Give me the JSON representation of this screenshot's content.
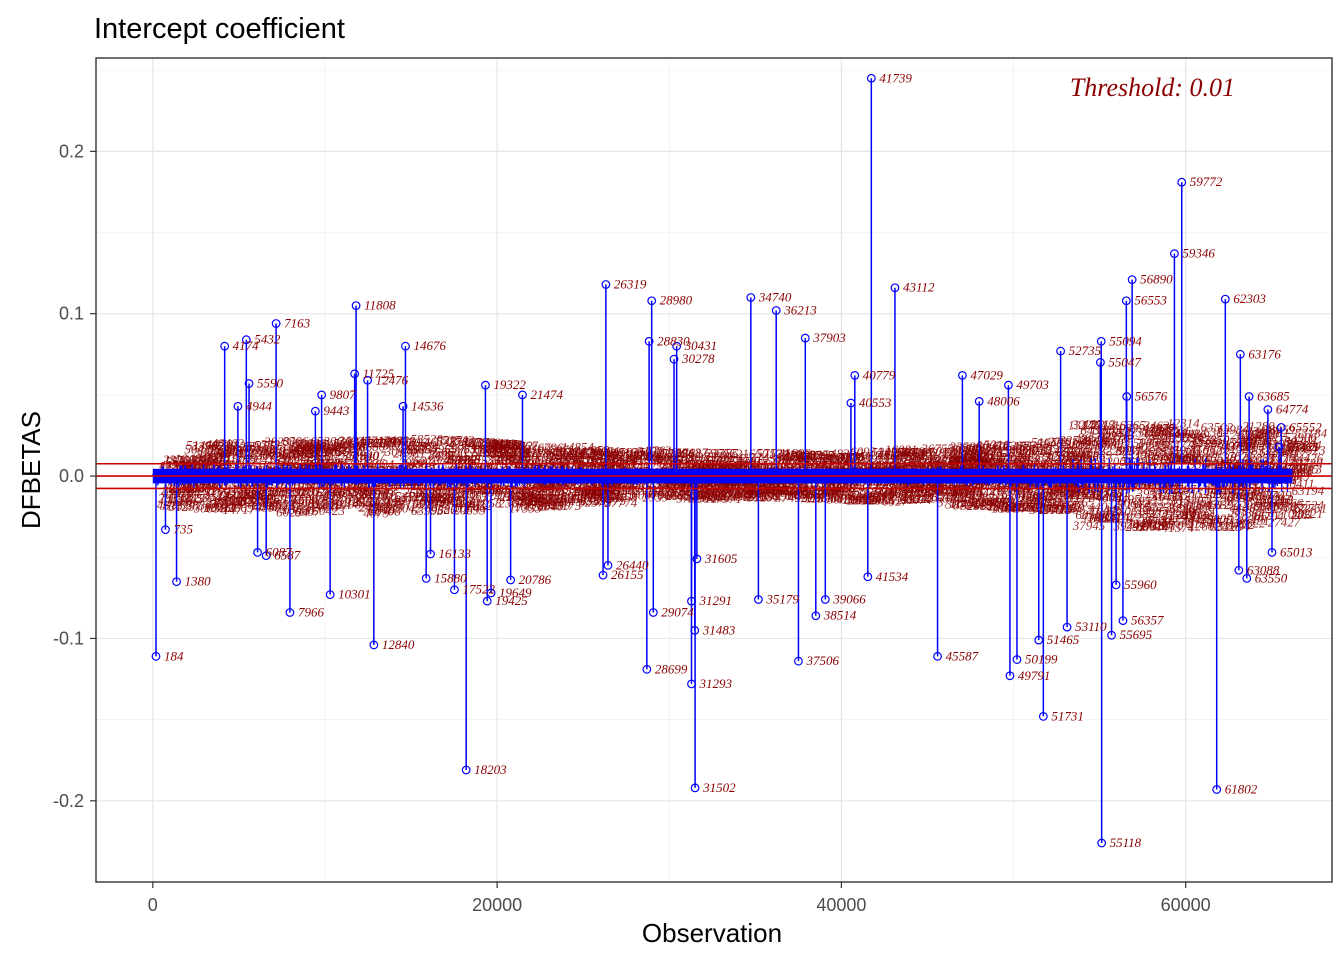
{
  "chart_data": {
    "type": "scatter",
    "title": "Intercept coefficient",
    "xlabel": "Observation",
    "ylabel": "DFBETAS",
    "xlim": [
      -3300,
      68500
    ],
    "ylim": [
      -0.25,
      0.2575
    ],
    "x_ticks": [
      0,
      20000,
      40000,
      60000
    ],
    "x_tick_labels": [
      "0",
      "20000",
      "40000",
      "60000"
    ],
    "y_ticks": [
      -0.2,
      -0.1,
      0.0,
      0.1,
      0.2
    ],
    "y_tick_labels": [
      "-0.2",
      "-0.1",
      "0.0",
      "0.1",
      "0.2"
    ],
    "threshold": 0.0076,
    "threshold_label": "Threshold: 0.01",
    "n_observations": 66200,
    "grid": true,
    "colors": {
      "stems": "#0000ff",
      "labels": "#8b0000",
      "threshold": "#cc0000",
      "points": "#0000ff"
    },
    "labeled_points": [
      {
        "x": 184,
        "y": -0.111,
        "label": "184"
      },
      {
        "x": 735,
        "y": -0.033,
        "label": "735"
      },
      {
        "x": 1380,
        "y": -0.065,
        "label": "1380"
      },
      {
        "x": 4174,
        "y": 0.08,
        "label": "4174"
      },
      {
        "x": 5432,
        "y": 0.084,
        "label": "5432"
      },
      {
        "x": 5590,
        "y": 0.057,
        "label": "5590"
      },
      {
        "x": 4944,
        "y": 0.043,
        "label": "4944"
      },
      {
        "x": 6087,
        "y": -0.047,
        "label": "6087"
      },
      {
        "x": 7163,
        "y": 0.094,
        "label": "7163"
      },
      {
        "x": 6587,
        "y": -0.049,
        "label": "6587"
      },
      {
        "x": 7966,
        "y": -0.084,
        "label": "7966"
      },
      {
        "x": 9443,
        "y": 0.04,
        "label": "9443"
      },
      {
        "x": 9807,
        "y": 0.05,
        "label": "9807"
      },
      {
        "x": 10301,
        "y": -0.073,
        "label": "10301"
      },
      {
        "x": 11808,
        "y": 0.105,
        "label": "11808"
      },
      {
        "x": 11725,
        "y": 0.063,
        "label": "11725"
      },
      {
        "x": 12476,
        "y": 0.059,
        "label": "12476"
      },
      {
        "x": 12840,
        "y": -0.104,
        "label": "12840"
      },
      {
        "x": 14676,
        "y": 0.08,
        "label": "14676"
      },
      {
        "x": 14536,
        "y": 0.043,
        "label": "14536"
      },
      {
        "x": 15880,
        "y": -0.063,
        "label": "15880"
      },
      {
        "x": 16133,
        "y": -0.048,
        "label": "16133"
      },
      {
        "x": 17522,
        "y": -0.07,
        "label": "17522"
      },
      {
        "x": 18203,
        "y": -0.181,
        "label": "18203"
      },
      {
        "x": 19322,
        "y": 0.056,
        "label": "19322"
      },
      {
        "x": 19425,
        "y": -0.077,
        "label": "19425"
      },
      {
        "x": 19649,
        "y": -0.072,
        "label": "19649"
      },
      {
        "x": 20786,
        "y": -0.064,
        "label": "20786"
      },
      {
        "x": 21474,
        "y": 0.05,
        "label": "21474"
      },
      {
        "x": 26319,
        "y": 0.118,
        "label": "26319"
      },
      {
        "x": 26440,
        "y": -0.055,
        "label": "26440"
      },
      {
        "x": 26155,
        "y": -0.061,
        "label": "26155"
      },
      {
        "x": 28980,
        "y": 0.108,
        "label": "28980"
      },
      {
        "x": 28830,
        "y": 0.083,
        "label": "28830"
      },
      {
        "x": 28699,
        "y": -0.119,
        "label": "28699"
      },
      {
        "x": 29074,
        "y": -0.084,
        "label": "29074"
      },
      {
        "x": 30431,
        "y": 0.08,
        "label": "30431"
      },
      {
        "x": 30278,
        "y": 0.072,
        "label": "30278"
      },
      {
        "x": 31291,
        "y": -0.077,
        "label": "31291"
      },
      {
        "x": 31483,
        "y": -0.095,
        "label": "31483"
      },
      {
        "x": 31293,
        "y": -0.128,
        "label": "31293"
      },
      {
        "x": 31502,
        "y": -0.192,
        "label": "31502"
      },
      {
        "x": 31605,
        "y": -0.051,
        "label": "31605"
      },
      {
        "x": 34740,
        "y": 0.11,
        "label": "34740"
      },
      {
        "x": 36213,
        "y": 0.102,
        "label": "36213"
      },
      {
        "x": 35179,
        "y": -0.076,
        "label": "35179"
      },
      {
        "x": 37903,
        "y": 0.085,
        "label": "37903"
      },
      {
        "x": 37506,
        "y": -0.114,
        "label": "37506"
      },
      {
        "x": 38514,
        "y": -0.086,
        "label": "38514"
      },
      {
        "x": 39066,
        "y": -0.076,
        "label": "39066"
      },
      {
        "x": 40779,
        "y": 0.062,
        "label": "40779"
      },
      {
        "x": 40553,
        "y": 0.045,
        "label": "40553"
      },
      {
        "x": 41739,
        "y": 0.245,
        "label": "41739"
      },
      {
        "x": 41534,
        "y": -0.062,
        "label": "41534"
      },
      {
        "x": 43112,
        "y": 0.116,
        "label": "43112"
      },
      {
        "x": 45587,
        "y": -0.111,
        "label": "45587"
      },
      {
        "x": 47029,
        "y": 0.062,
        "label": "47029"
      },
      {
        "x": 48006,
        "y": 0.046,
        "label": "48006"
      },
      {
        "x": 49703,
        "y": 0.056,
        "label": "49703"
      },
      {
        "x": 49791,
        "y": -0.123,
        "label": "49791"
      },
      {
        "x": 50199,
        "y": -0.113,
        "label": "50199"
      },
      {
        "x": 51465,
        "y": -0.101,
        "label": "51465"
      },
      {
        "x": 51731,
        "y": -0.148,
        "label": "51731"
      },
      {
        "x": 53110,
        "y": -0.093,
        "label": "53110"
      },
      {
        "x": 52735,
        "y": 0.077,
        "label": "52735"
      },
      {
        "x": 55094,
        "y": 0.083,
        "label": "55094"
      },
      {
        "x": 55047,
        "y": 0.07,
        "label": "55047"
      },
      {
        "x": 55118,
        "y": -0.226,
        "label": "55118"
      },
      {
        "x": 55695,
        "y": -0.098,
        "label": "55695"
      },
      {
        "x": 55960,
        "y": -0.067,
        "label": "55960"
      },
      {
        "x": 56357,
        "y": -0.089,
        "label": "56357"
      },
      {
        "x": 56553,
        "y": 0.108,
        "label": "56553"
      },
      {
        "x": 56890,
        "y": 0.121,
        "label": "56890"
      },
      {
        "x": 56576,
        "y": 0.049,
        "label": "56576"
      },
      {
        "x": 59346,
        "y": 0.137,
        "label": "59346"
      },
      {
        "x": 59772,
        "y": 0.181,
        "label": "59772"
      },
      {
        "x": 61802,
        "y": -0.193,
        "label": "61802"
      },
      {
        "x": 62303,
        "y": 0.109,
        "label": "62303"
      },
      {
        "x": 63176,
        "y": 0.075,
        "label": "63176"
      },
      {
        "x": 63685,
        "y": 0.049,
        "label": "63685"
      },
      {
        "x": 63088,
        "y": -0.058,
        "label": "63088"
      },
      {
        "x": 63550,
        "y": -0.063,
        "label": "63550"
      },
      {
        "x": 64774,
        "y": 0.041,
        "label": "64774"
      },
      {
        "x": 65552,
        "y": 0.03,
        "label": "65552"
      },
      {
        "x": 65421,
        "y": 0.018,
        "label": "65421"
      },
      {
        "x": 65013,
        "y": -0.047,
        "label": "65013"
      }
    ]
  }
}
